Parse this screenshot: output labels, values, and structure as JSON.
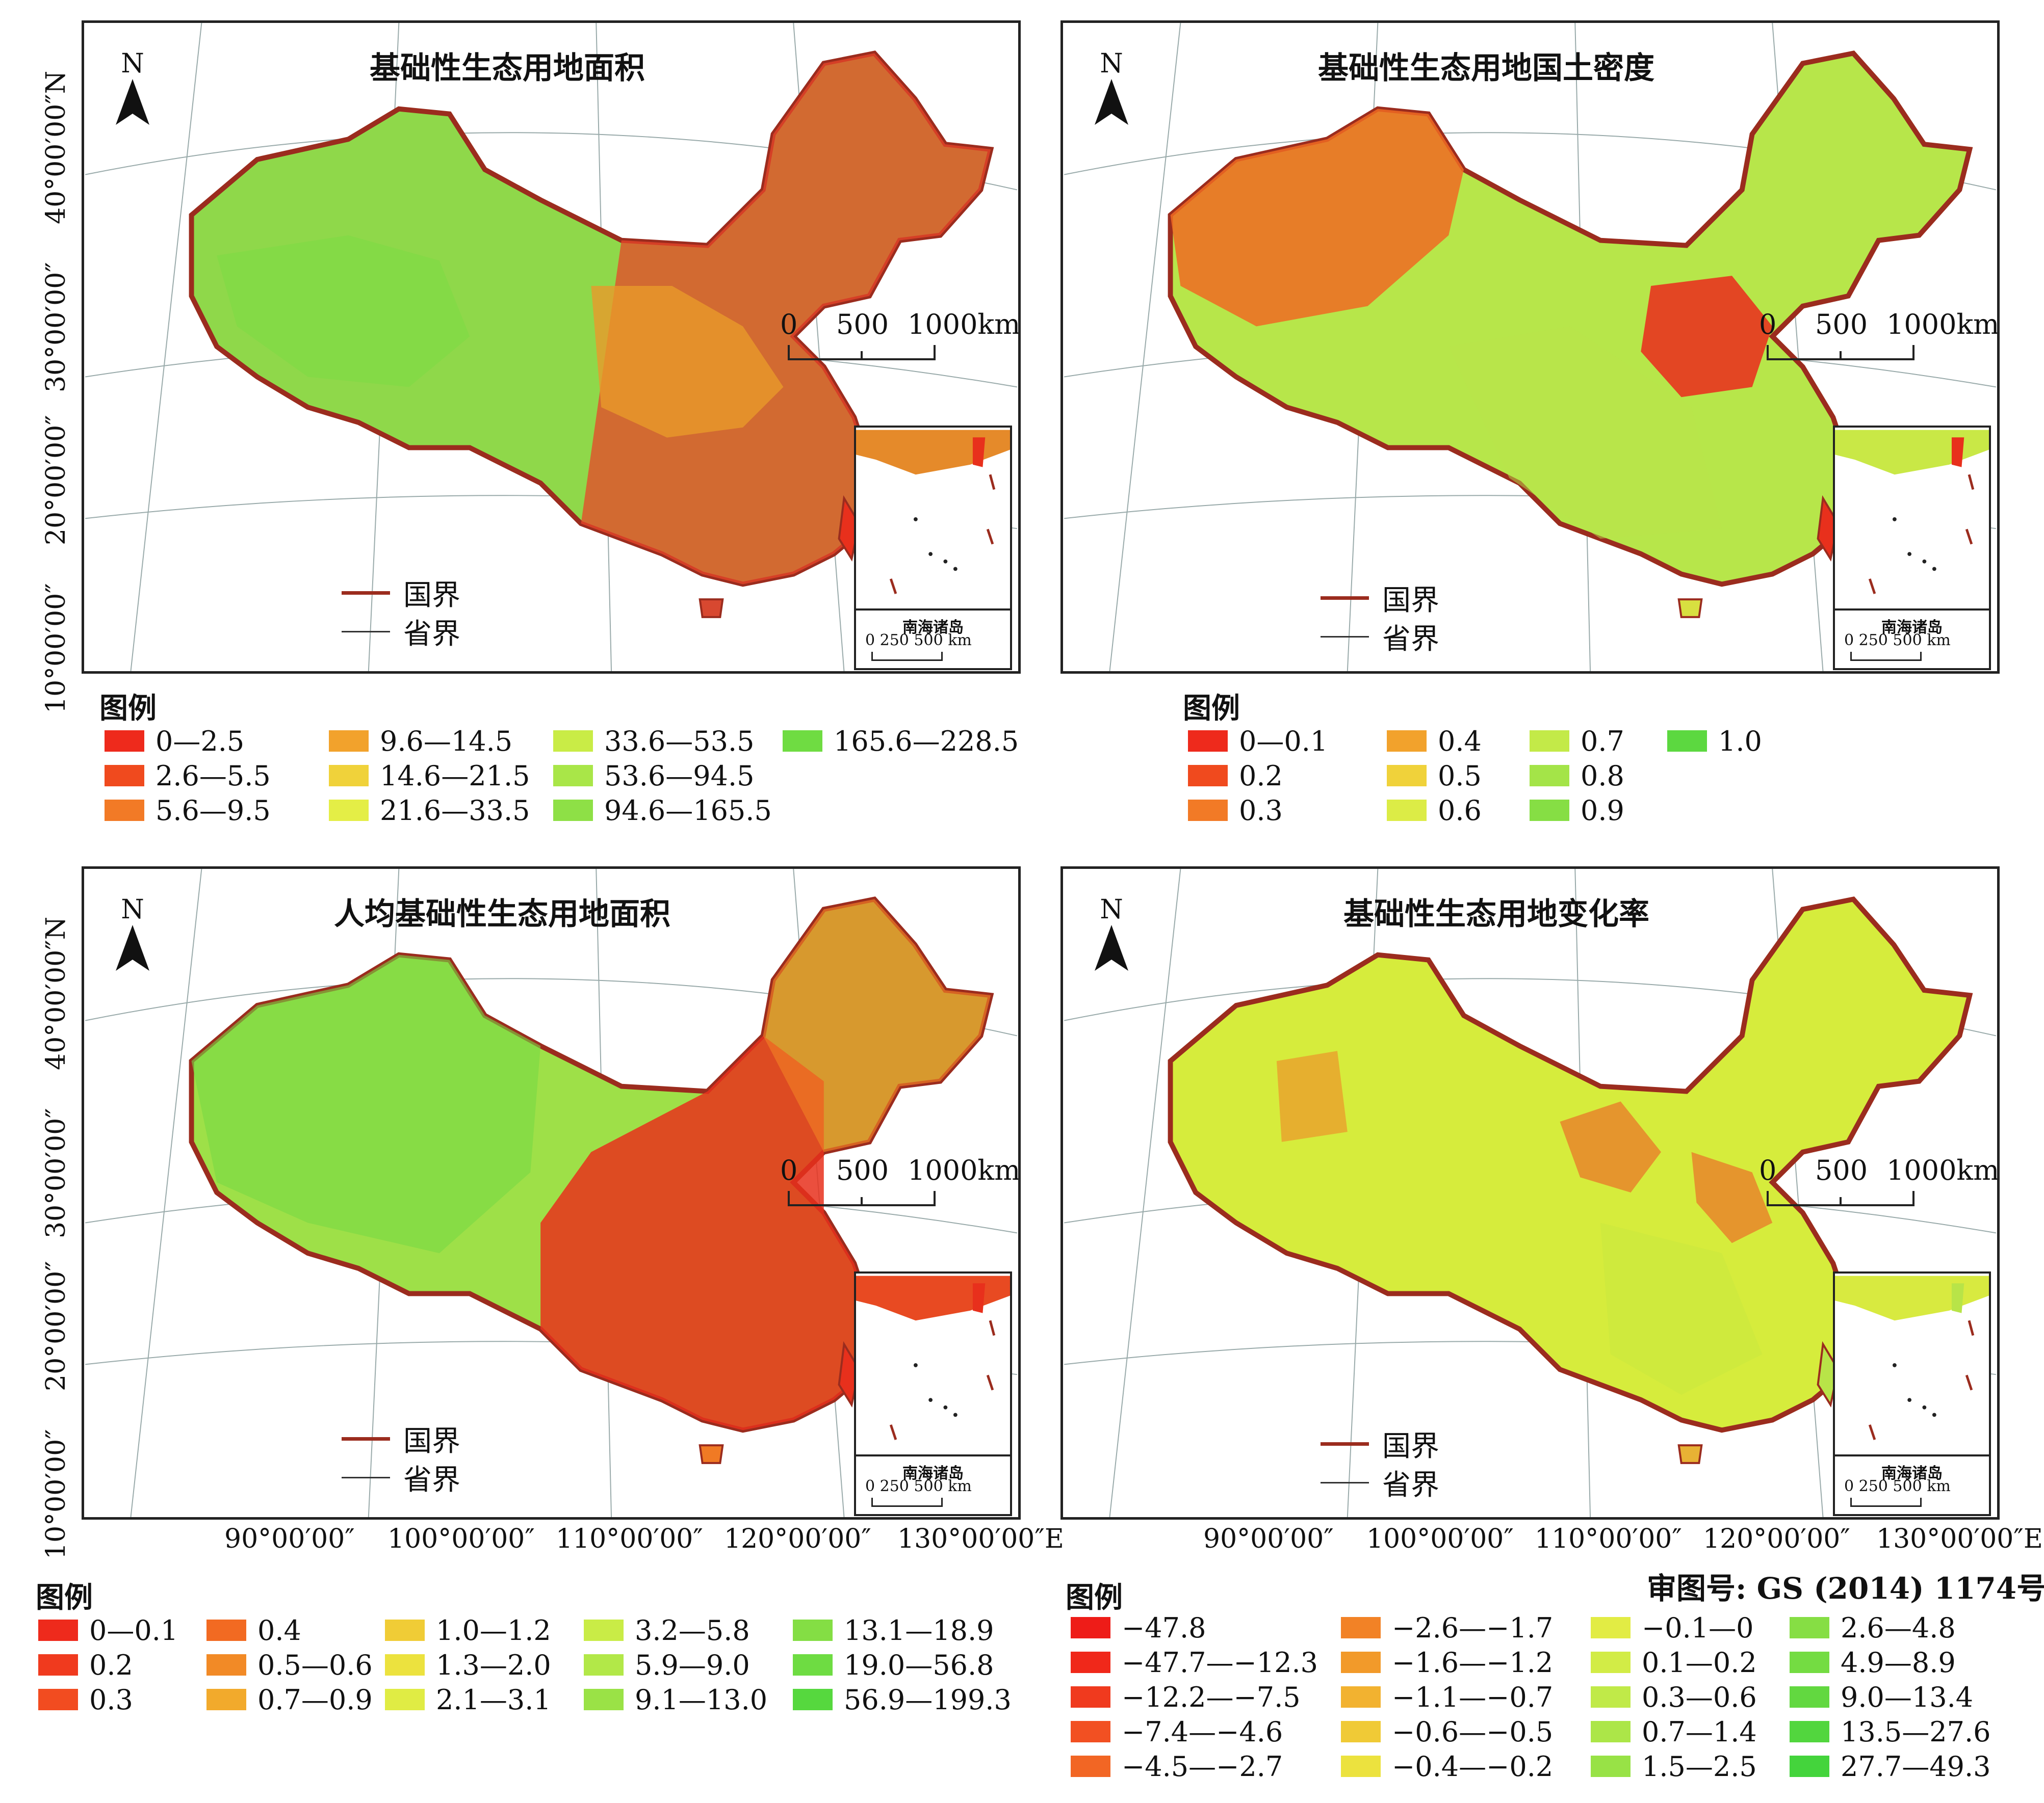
{
  "panels": [
    {
      "title": "基础性生态用地面积",
      "fill": "#8fd84a",
      "east": "#e8452a",
      "mid": "#e89a2a",
      "west": "#7fdc44"
    },
    {
      "title": "基础性生态用地国土密度",
      "fill": "#b7e64a",
      "east": "#e8341f",
      "mid": "#b9e34a",
      "west": "#f06a22"
    },
    {
      "title": "人均基础性生态用地面积",
      "fill": "#9ee048",
      "east": "#e8301c",
      "mid": "#ef7a24",
      "west": "#78d845"
    },
    {
      "title": "基础性生态用地变化率",
      "fill": "#d6ec3c",
      "east": "#e8862a",
      "mid": "#c8e83e",
      "west": "#d9ee40"
    }
  ],
  "map_common": {
    "north": "N",
    "scale": {
      "zero": "0",
      "mid": "500",
      "end": "1000km"
    },
    "boundary_legend": {
      "national": "国界",
      "provincial": "省界"
    },
    "inset": {
      "caption": "南海诸岛",
      "scale": "0  250  500 km"
    }
  },
  "lat_labels": [
    "40°00′00″N",
    "30°00′00″",
    "20°00′00″",
    "10°00′00″"
  ],
  "lon_labels": [
    "90°00′00″",
    "100°00′00″",
    "110°00′00″",
    "120°00′00″",
    "130°00′00″E"
  ],
  "approval": "审图号: GS (2014) 1174号",
  "legend_title": "图例",
  "legends": [
    {
      "items": [
        {
          "label": "0—2.5",
          "color": "#ee2a1c"
        },
        {
          "label": "2.6—5.5",
          "color": "#f04a1e"
        },
        {
          "label": "5.6—9.5",
          "color": "#f27a26"
        },
        {
          "label": "9.6—14.5",
          "color": "#f2a22c"
        },
        {
          "label": "14.6—21.5",
          "color": "#f0d23a"
        },
        {
          "label": "21.6—33.5",
          "color": "#e4ee46"
        },
        {
          "label": "33.6—53.5",
          "color": "#c9ec46"
        },
        {
          "label": "53.6—94.5",
          "color": "#a9e648"
        },
        {
          "label": "94.6—165.5",
          "color": "#8ee046"
        },
        {
          "label": "165.6—228.5",
          "color": "#6fdc42"
        }
      ]
    },
    {
      "items": [
        {
          "label": "0—0.1",
          "color": "#ee2a1c"
        },
        {
          "label": "0.2",
          "color": "#f04a1e"
        },
        {
          "label": "0.3",
          "color": "#f27a26"
        },
        {
          "label": "0.4",
          "color": "#f2a22c"
        },
        {
          "label": "0.5",
          "color": "#f0d23a"
        },
        {
          "label": "0.6",
          "color": "#dcec46"
        },
        {
          "label": "0.7",
          "color": "#c3ea48"
        },
        {
          "label": "0.8",
          "color": "#a4e448"
        },
        {
          "label": "0.9",
          "color": "#86de44"
        },
        {
          "label": "1.0",
          "color": "#5cd840"
        }
      ]
    },
    {
      "items": [
        {
          "label": "0—0.1",
          "color": "#ee2a1c"
        },
        {
          "label": "0.2",
          "color": "#f03a1e"
        },
        {
          "label": "0.3",
          "color": "#f24c20"
        },
        {
          "label": "0.4",
          "color": "#f26a22"
        },
        {
          "label": "0.5—0.6",
          "color": "#f28a26"
        },
        {
          "label": "0.7—0.9",
          "color": "#f2aa2c"
        },
        {
          "label": "1.0—1.2",
          "color": "#f0cc36"
        },
        {
          "label": "1.3—2.0",
          "color": "#ece23e"
        },
        {
          "label": "2.1—3.1",
          "color": "#e0ec44"
        },
        {
          "label": "3.2—5.8",
          "color": "#c9ec46"
        },
        {
          "label": "5.9—9.0",
          "color": "#b2e848"
        },
        {
          "label": "9.1—13.0",
          "color": "#9ae246"
        },
        {
          "label": "13.1—18.9",
          "color": "#84de44"
        },
        {
          "label": "19.0—56.8",
          "color": "#6edc42"
        },
        {
          "label": "56.9—199.3",
          "color": "#56d83e"
        }
      ]
    },
    {
      "items": [
        {
          "label": "−47.8",
          "color": "#ee1c18"
        },
        {
          "label": "−47.7—−12.3",
          "color": "#f0281a"
        },
        {
          "label": "−12.2—−7.5",
          "color": "#f03a1e"
        },
        {
          "label": "−7.4—−4.6",
          "color": "#f25022"
        },
        {
          "label": "−4.5—−2.7",
          "color": "#f26624"
        },
        {
          "label": "−2.6—−1.7",
          "color": "#f28226"
        },
        {
          "label": "−1.6—−1.2",
          "color": "#f29a2a"
        },
        {
          "label": "−1.1—−0.7",
          "color": "#f2b230"
        },
        {
          "label": "−0.6—−0.5",
          "color": "#f0ca36"
        },
        {
          "label": "−0.4—−0.2",
          "color": "#ece23e"
        },
        {
          "label": "−0.1—0",
          "color": "#e2ec44"
        },
        {
          "label": "0.1—0.2",
          "color": "#d2ec46"
        },
        {
          "label": "0.3—0.6",
          "color": "#c0ea48"
        },
        {
          "label": "0.7—1.4",
          "color": "#ace648"
        },
        {
          "label": "1.5—2.5",
          "color": "#98e246"
        },
        {
          "label": "2.6—4.8",
          "color": "#86de44"
        },
        {
          "label": "4.9—8.9",
          "color": "#74dc42"
        },
        {
          "label": "9.0—13.4",
          "color": "#62d840"
        },
        {
          "label": "13.5—27.6",
          "color": "#52d63e"
        },
        {
          "label": "27.7—49.3",
          "color": "#44d43c"
        }
      ]
    }
  ]
}
